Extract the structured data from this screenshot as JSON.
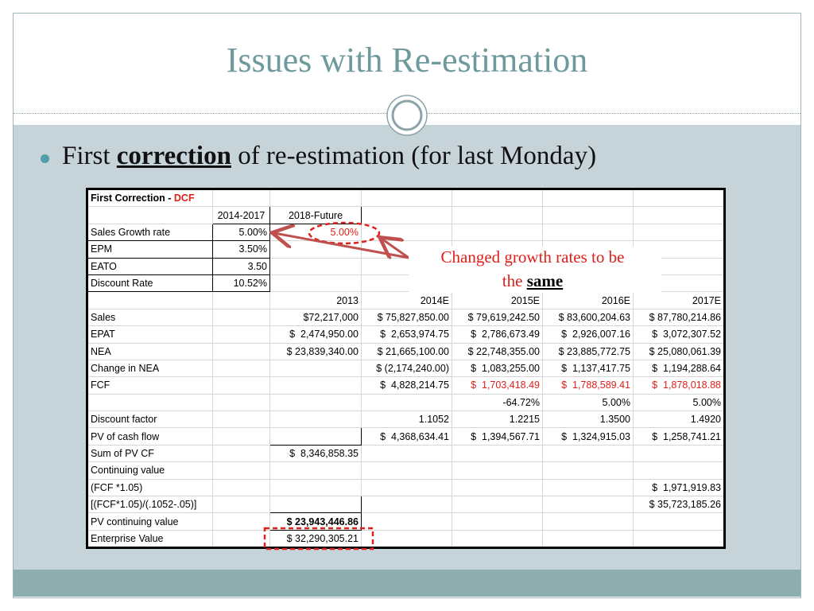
{
  "title": "Issues with Re-estimation",
  "bullet": {
    "lead": "First",
    "emphasis": "correction",
    "rest": "of re-estimation (for last Monday)"
  },
  "annotation": {
    "line1": "Changed growth rates to be",
    "line2_lead": "the",
    "line2_emphasis": "same"
  },
  "table": {
    "heading": "First Correction -",
    "heading_highlight": "DCF",
    "rows": [
      [
        null,
        "2014-2017",
        "2018-Future"
      ],
      [
        "Sales Growth rate",
        "5.00%",
        "5.00%"
      ],
      [
        "EPM",
        "3.50%"
      ],
      [
        "EATO",
        "3.50"
      ],
      [
        "Discount Rate",
        "10.52%"
      ],
      [
        null,
        null,
        "2013",
        "2014E",
        "2015E",
        "2016E",
        "2017E"
      ],
      [
        "Sales",
        null,
        "$72,217,000",
        "$ 75,827,850.00",
        "$ 79,619,242.50",
        "$ 83,600,204.63",
        "$ 87,780,214.86"
      ],
      [
        "EPAT",
        null,
        "$  2,474,950.00",
        "$  2,653,974.75",
        "$  2,786,673.49",
        "$  2,926,007.16",
        "$  3,072,307.52"
      ],
      [
        "NEA",
        null,
        "$ 23,839,340.00",
        "$ 21,665,100.00",
        "$ 22,748,355.00",
        "$ 23,885,772.75",
        "$ 25,080,061.39"
      ],
      [
        "Change in NEA",
        null,
        null,
        "$ (2,174,240.00)",
        "$  1,083,255.00",
        "$  1,137,417.75",
        "$  1,194,288.64"
      ],
      [
        "FCF",
        null,
        null,
        "$  4,828,214.75",
        "$  1,703,418.49",
        "$  1,788,589.41",
        "$  1,878,018.88"
      ],
      [
        null,
        null,
        null,
        null,
        "-64.72%",
        "5.00%",
        "5.00%"
      ],
      [
        "Discount factor",
        null,
        null,
        "1.1052",
        "1.2215",
        "1.3500",
        "1.4920"
      ],
      [
        "PV of cash flow",
        null,
        null,
        "$  4,368,634.41",
        "$  1,394,567.71",
        "$  1,324,915.03",
        "$  1,258,741.21"
      ],
      [
        "Sum of PV CF",
        null,
        "$  8,346,858.35"
      ],
      [
        "Continuing value"
      ],
      [
        "(FCF *1.05)",
        null,
        null,
        null,
        null,
        null,
        "$  1,971,919.83"
      ],
      [
        "[(FCF*1.05)/(.1052-.05)]",
        null,
        null,
        null,
        null,
        null,
        "$ 35,723,185.26"
      ],
      [
        "PV continuing value",
        null,
        "$ 23,943,446.86"
      ],
      [
        "Enterprise Value",
        null,
        "$ 32,290,305.21"
      ]
    ]
  }
}
